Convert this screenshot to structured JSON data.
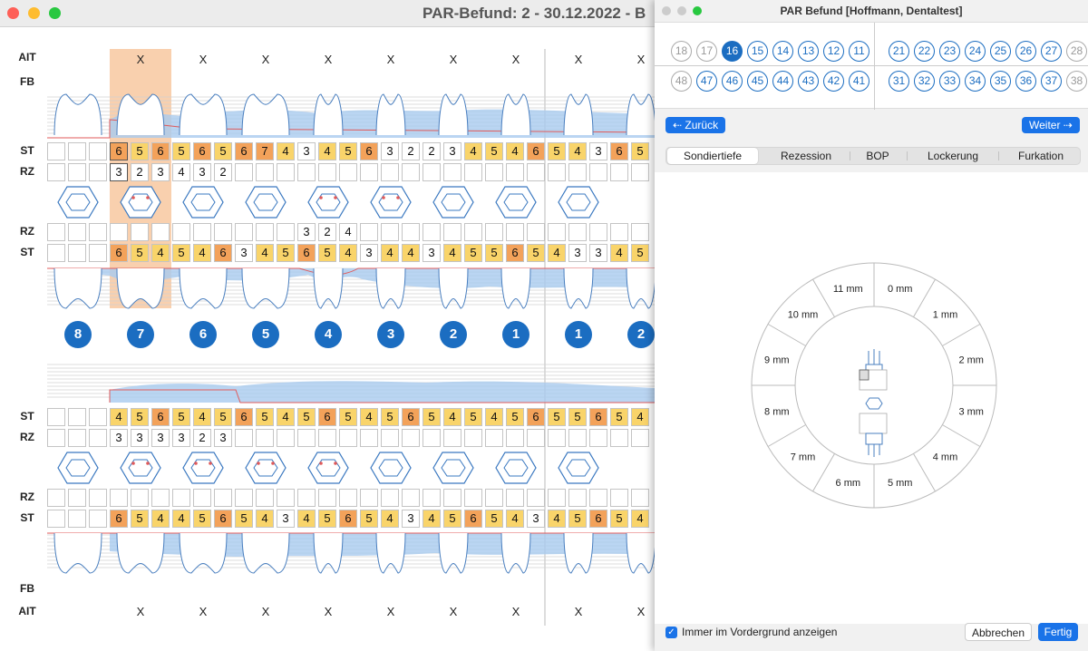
{
  "main_window": {
    "title": "PAR-Befund: 2 - 30.12.2022 - B",
    "row_labels": {
      "ait": "AIT",
      "fb": "FB",
      "st": "ST",
      "rz": "RZ"
    },
    "upper_tooth_numbers": [
      "8",
      "7",
      "6",
      "5",
      "4",
      "3",
      "2",
      "1",
      "1",
      "2"
    ],
    "ait_marks_top": [
      "X",
      "X",
      "X",
      "X",
      "X",
      "X",
      "X",
      "X",
      "X"
    ],
    "ait_marks_bottom": [
      "X",
      "X",
      "X",
      "X",
      "X",
      "X",
      "X",
      "X",
      "X"
    ],
    "upper_st_buccal": [
      [
        "",
        "",
        ""
      ],
      [
        "6",
        "5",
        "6"
      ],
      [
        "5",
        "6",
        "5"
      ],
      [
        "6",
        "7",
        "4"
      ],
      [
        "3",
        "4",
        "5"
      ],
      [
        "6",
        "3",
        "2"
      ],
      [
        "2",
        "3",
        "4"
      ],
      [
        "5",
        "4",
        "6"
      ],
      [
        "5",
        "4",
        "3"
      ],
      [
        "6",
        "5",
        ""
      ]
    ],
    "upper_rz_buccal": [
      [
        "",
        "",
        ""
      ],
      [
        "3",
        "2",
        "3"
      ],
      [
        "4",
        "3",
        "2"
      ],
      [
        "",
        "",
        ""
      ],
      [
        "",
        "",
        ""
      ],
      [
        "",
        "",
        ""
      ],
      [
        "",
        "",
        ""
      ],
      [
        "",
        "",
        ""
      ],
      [
        "",
        "",
        ""
      ],
      [
        "",
        "",
        ""
      ]
    ],
    "upper_rz_palatal": [
      [
        "",
        "",
        ""
      ],
      [
        "",
        "",
        ""
      ],
      [
        "",
        "",
        ""
      ],
      [
        "",
        "",
        ""
      ],
      [
        "3",
        "2",
        "4"
      ],
      [
        "",
        "",
        ""
      ],
      [
        "",
        "",
        ""
      ],
      [
        "",
        "",
        ""
      ],
      [
        "",
        "",
        ""
      ],
      [
        "",
        "",
        ""
      ]
    ],
    "upper_st_palatal": [
      [
        "",
        "",
        ""
      ],
      [
        "6",
        "5",
        "4"
      ],
      [
        "5",
        "4",
        "6"
      ],
      [
        "3",
        "4",
        "5"
      ],
      [
        "6",
        "5",
        "4"
      ],
      [
        "3",
        "4",
        "4"
      ],
      [
        "3",
        "4",
        "5"
      ],
      [
        "5",
        "6",
        "5"
      ],
      [
        "4",
        "3",
        "3"
      ],
      [
        "4",
        "5",
        ""
      ]
    ],
    "lower_st_lingual": [
      [
        "",
        "",
        ""
      ],
      [
        "4",
        "5",
        "6"
      ],
      [
        "5",
        "4",
        "5"
      ],
      [
        "6",
        "5",
        "4"
      ],
      [
        "5",
        "6",
        "5"
      ],
      [
        "4",
        "5",
        "6"
      ],
      [
        "5",
        "4",
        "5"
      ],
      [
        "4",
        "5",
        "6"
      ],
      [
        "5",
        "5",
        "6"
      ],
      [
        "5",
        "4",
        ""
      ]
    ],
    "lower_rz_lingual": [
      [
        "",
        "",
        ""
      ],
      [
        "3",
        "3",
        "3"
      ],
      [
        "3",
        "2",
        "3"
      ],
      [
        "",
        "",
        ""
      ],
      [
        "",
        "",
        ""
      ],
      [
        "",
        "",
        ""
      ],
      [
        "",
        "",
        ""
      ],
      [
        "",
        "",
        ""
      ],
      [
        "",
        "",
        ""
      ],
      [
        "",
        "",
        ""
      ]
    ],
    "lower_rz_buccal": [
      [
        "",
        "",
        ""
      ],
      [
        "",
        "",
        ""
      ],
      [
        "",
        "",
        ""
      ],
      [
        "",
        "",
        ""
      ],
      [
        "",
        "",
        ""
      ],
      [
        "",
        "",
        ""
      ],
      [
        "",
        "",
        ""
      ],
      [
        "",
        "",
        ""
      ],
      [
        "",
        "",
        ""
      ],
      [
        "",
        "",
        ""
      ]
    ],
    "lower_st_buccal": [
      [
        "",
        "",
        ""
      ],
      [
        "6",
        "5",
        "4"
      ],
      [
        "4",
        "5",
        "6"
      ],
      [
        "5",
        "4",
        "3"
      ],
      [
        "4",
        "5",
        "6"
      ],
      [
        "5",
        "4",
        "3"
      ],
      [
        "4",
        "5",
        "6"
      ],
      [
        "5",
        "4",
        "3"
      ],
      [
        "4",
        "5",
        "6"
      ],
      [
        "5",
        "4",
        ""
      ]
    ]
  },
  "panel": {
    "title": "PAR Befund [Hoffmann, Dentaltest]",
    "upper_teeth": [
      "18",
      "17",
      "16",
      "15",
      "14",
      "13",
      "12",
      "11",
      "21",
      "22",
      "23",
      "24",
      "25",
      "26",
      "27",
      "28"
    ],
    "lower_teeth": [
      "48",
      "47",
      "46",
      "45",
      "44",
      "43",
      "42",
      "41",
      "31",
      "32",
      "33",
      "34",
      "35",
      "36",
      "37",
      "38"
    ],
    "selected_tooth": "16",
    "gray_teeth": [
      "18",
      "17",
      "28",
      "48",
      "38"
    ],
    "back_button": "Zurück",
    "next_button": "Weiter",
    "tabs": [
      "Sondiertiefe",
      "Rezession",
      "BOP",
      "Lockerung",
      "Furkation"
    ],
    "active_tab": "Sondiertiefe",
    "dial_labels": [
      "0 mm",
      "1 mm",
      "2 mm",
      "3 mm",
      "4 mm",
      "5 mm",
      "6 mm",
      "7 mm",
      "8 mm",
      "9 mm",
      "10 mm",
      "11 mm"
    ],
    "always_on_top_label": "Immer im Vordergrund anzeigen",
    "always_on_top_checked": true,
    "cancel_button": "Abbrechen",
    "done_button": "Fertig"
  },
  "colors": {
    "accent_blue": "#1b6dc1",
    "cell_yellow": "#f9d46a",
    "cell_orange": "#f3a25a",
    "cell_light": "#fbe6a6",
    "highlight_column": "#f8c8a0",
    "chart_fill": "#a9cbef",
    "gingival_line": "#e05a5a"
  }
}
